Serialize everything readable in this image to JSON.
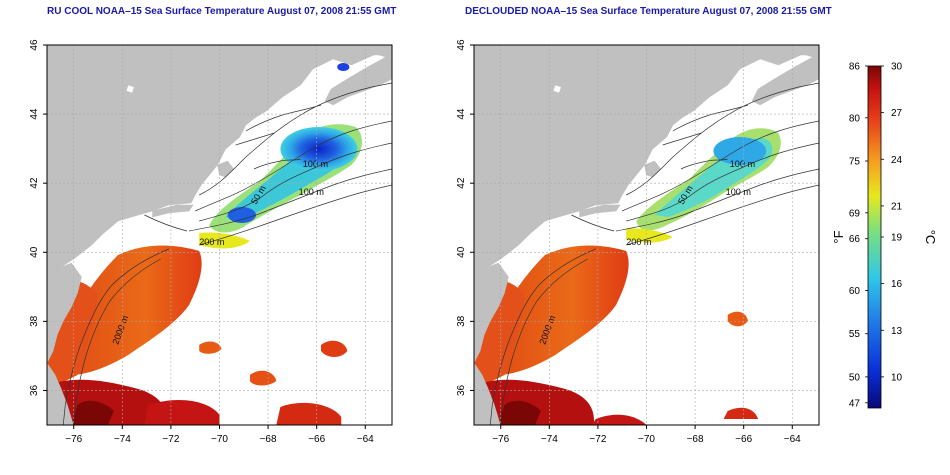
{
  "panels": [
    {
      "title": "RU COOL NOAA–15 Sea Surface Temperature August 07, 2008 21:55 GMT",
      "variant": "raw"
    },
    {
      "title": "DECLOUDED NOAA–15 Sea Surface Temperature August 07, 2008 21:55 GMT",
      "variant": "declouded"
    }
  ],
  "map": {
    "lon_ticks": [
      "−76",
      "−74",
      "−72",
      "−70",
      "−68",
      "−66",
      "−64"
    ],
    "lat_ticks": [
      "36",
      "38",
      "40",
      "42",
      "44",
      "46"
    ],
    "lon_range": [
      -77.1,
      -62.9
    ],
    "lat_range": [
      35.0,
      46.0
    ],
    "contour_labels": [
      "100 m",
      "100 m",
      "50 m",
      "200 m",
      "2000 m"
    ],
    "land_color": "#c0c0c0",
    "ocean_color": "#ffffff"
  },
  "colorbar": {
    "f_label": "°F",
    "c_label": "°C",
    "f_ticks": [
      "86",
      "80",
      "75",
      "69",
      "66",
      "60",
      "55",
      "50",
      "47"
    ],
    "c_ticks": [
      "30",
      "27",
      "24",
      "21",
      "19",
      "16",
      "13",
      "10"
    ],
    "c_range": [
      8,
      30
    ],
    "colors": [
      "#08087a",
      "#0a2fd8",
      "#1f7ae8",
      "#2fc8e8",
      "#7de07a",
      "#e8e81f",
      "#f5a01f",
      "#e8401a",
      "#c01010",
      "#7a0606"
    ]
  }
}
